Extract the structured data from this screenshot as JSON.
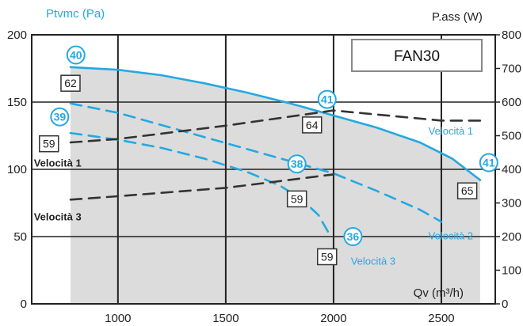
{
  "chart_data": {
    "type": "line",
    "title": "FAN30",
    "xlabel": "Qv (m³/h)",
    "ylabel_left": "Ptvmc (Pa)",
    "ylabel_right": "P.ass (W)",
    "xlim": [
      600,
      2750
    ],
    "ylim_left": [
      0,
      200
    ],
    "ylim_right": [
      0,
      800
    ],
    "x_ticks": [
      "1000",
      "1500",
      "2000",
      "2500"
    ],
    "y_ticks_left": [
      "0",
      "50",
      "100",
      "150",
      "200"
    ],
    "y_ticks_right": [
      "0",
      "100",
      "200",
      "300",
      "400",
      "500",
      "600",
      "700",
      "800"
    ],
    "grid": true,
    "colors": {
      "pressure": "#23a9e1",
      "power": "#333333",
      "area": "#dcdcdc",
      "grid": "#222222"
    },
    "pressure_series": [
      {
        "name": "Velocità 1",
        "style": "solid",
        "x": [
          780,
          1000,
          1200,
          1400,
          1600,
          1800,
          2000,
          2200,
          2400,
          2550,
          2680
        ],
        "y": [
          176,
          174,
          170,
          164,
          157,
          149,
          140,
          131,
          120,
          108,
          92
        ]
      },
      {
        "name": "Velocità 2",
        "style": "dashed",
        "x": [
          780,
          1000,
          1200,
          1400,
          1600,
          1800,
          2000,
          2200,
          2400,
          2500
        ],
        "y": [
          149,
          142,
          133,
          124,
          115,
          106,
          97,
          84,
          70,
          61
        ]
      },
      {
        "name": "Velocità 3",
        "style": "dashed",
        "x": [
          780,
          1000,
          1200,
          1400,
          1600,
          1750,
          1850,
          1930,
          1980
        ],
        "y": [
          127,
          122,
          116,
          108,
          98,
          88,
          78,
          66,
          52
        ]
      }
    ],
    "power_series": [
      {
        "name": "Velocità 1",
        "style": "dashed",
        "x": [
          780,
          1000,
          1500,
          2000,
          2500,
          2700
        ],
        "y": [
          480,
          490,
          530,
          575,
          545,
          545
        ]
      },
      {
        "name": "Velocità 3",
        "style": "dashed",
        "x": [
          780,
          1000,
          1500,
          2000
        ],
        "y": [
          310,
          320,
          345,
          385
        ]
      }
    ],
    "area": {
      "x_start": 780,
      "x_end": 2680,
      "top_y": [
        176,
        174,
        170,
        164,
        157,
        149,
        140,
        131,
        120,
        108,
        92
      ],
      "top_x": [
        780,
        1000,
        1200,
        1400,
        1600,
        1800,
        2000,
        2200,
        2400,
        2550,
        2680
      ]
    },
    "circle_labels": [
      {
        "text": "40",
        "x": 805,
        "y": 185
      },
      {
        "text": "39",
        "x": 730,
        "y": 139
      },
      {
        "text": "41",
        "x": 1970,
        "y": 152
      },
      {
        "text": "38",
        "x": 1830,
        "y": 104
      },
      {
        "text": "36",
        "x": 2090,
        "y": 50
      },
      {
        "text": "41",
        "x": 2720,
        "y": 105
      }
    ],
    "box_labels": [
      {
        "text": "62",
        "x": 780,
        "y": 164
      },
      {
        "text": "59",
        "x": 680,
        "y": 119
      },
      {
        "text": "64",
        "x": 1900,
        "y": 133
      },
      {
        "text": "59",
        "x": 1830,
        "y": 78
      },
      {
        "text": "59",
        "x": 1970,
        "y": 35
      },
      {
        "text": "65",
        "x": 2620,
        "y": 84
      }
    ],
    "text_labels": [
      {
        "text": "Velocità 1",
        "x": 2440,
        "y": 126,
        "color": "pressure",
        "anchor": "start"
      },
      {
        "text": "Velocità 1",
        "x": 610,
        "y": 102,
        "color": "dark",
        "anchor": "start",
        "bold": true
      },
      {
        "text": "Velocità 3",
        "x": 610,
        "y": 62,
        "color": "dark",
        "anchor": "start",
        "bold": true
      },
      {
        "text": "Velocità 2",
        "x": 2440,
        "y": 48,
        "color": "pressure",
        "anchor": "start"
      },
      {
        "text": "Velocità 3",
        "x": 2080,
        "y": 29,
        "color": "pressure",
        "anchor": "start"
      }
    ]
  }
}
